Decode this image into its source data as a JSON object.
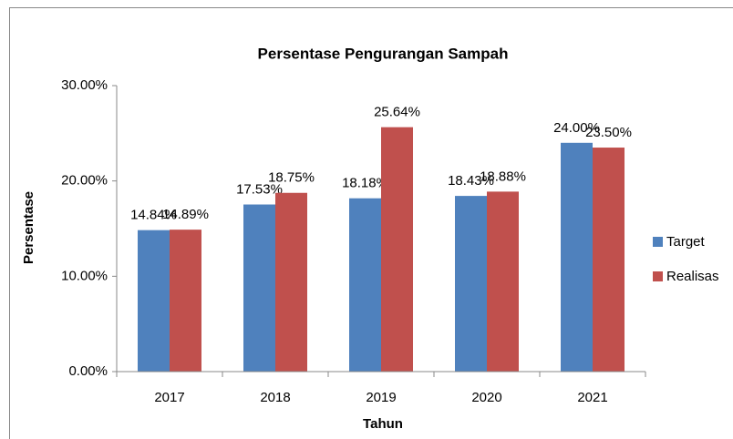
{
  "chart_data": {
    "type": "bar",
    "title": "Persentase Pengurangan Sampah",
    "x_label": "Tahun",
    "y_label": "Persentase",
    "categories": [
      "2017",
      "2018",
      "2019",
      "2020",
      "2021"
    ],
    "series": [
      {
        "name": "Target",
        "color": "#4f81bd",
        "values": [
          14.84,
          17.53,
          18.18,
          18.43,
          24.0
        ],
        "value_labels": [
          "14.84%",
          "17.53%",
          "18.18%",
          "18.43%",
          "24.00%"
        ]
      },
      {
        "name": "Realisas",
        "color": "#c0504d",
        "values": [
          14.89,
          18.75,
          25.64,
          18.88,
          23.5
        ],
        "value_labels": [
          "14.89%",
          "18.75%",
          "25.64%",
          "18.88%",
          "23.50%"
        ]
      }
    ],
    "ylim": [
      0,
      30
    ],
    "yticks": [
      {
        "value": 0,
        "label": "0.00%"
      },
      {
        "value": 10,
        "label": "10.00%"
      },
      {
        "value": 20,
        "label": "20.00%"
      },
      {
        "value": 30,
        "label": "30.00%"
      }
    ],
    "grid": false,
    "legend": "right"
  }
}
